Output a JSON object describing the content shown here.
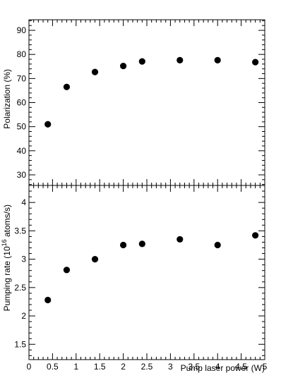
{
  "chart_data": [
    {
      "type": "scatter",
      "ylabel": "Polarization (%)",
      "x": [
        0.4,
        0.8,
        1.4,
        2,
        2.4,
        3.2,
        4,
        4.8
      ],
      "values": [
        51,
        66.5,
        72.7,
        75.2,
        77.1,
        77.6,
        77.6,
        76.8
      ],
      "color": "#000000",
      "xlim": [
        0,
        5
      ],
      "xticks": [
        0,
        0.5,
        1,
        1.5,
        2,
        2.5,
        3,
        3.5,
        4,
        4.5,
        5
      ],
      "ylim": [
        25.6,
        94.4
      ],
      "yticks": [
        30,
        40,
        50,
        60,
        70,
        80,
        90
      ]
    },
    {
      "type": "scatter",
      "ylabel": {
        "before": "Pumping rate (10",
        "superscript": "16",
        "after": " atoms/s)"
      },
      "xlabel": "Pump laser power (W)",
      "x": [
        0.4,
        0.8,
        1.4,
        2,
        2.4,
        3.2,
        4,
        4.8
      ],
      "values": [
        2.28,
        2.81,
        3.0,
        3.25,
        3.27,
        3.35,
        3.25,
        3.42
      ],
      "color": "#000000",
      "xlim": [
        0,
        5
      ],
      "xticks": [
        0,
        0.5,
        1,
        1.5,
        2,
        2.5,
        3,
        3.5,
        4,
        4.5,
        5
      ],
      "ylim": [
        1.23,
        4.3
      ],
      "yticks": [
        1.5,
        2,
        2.5,
        3,
        3.5,
        4
      ]
    }
  ]
}
